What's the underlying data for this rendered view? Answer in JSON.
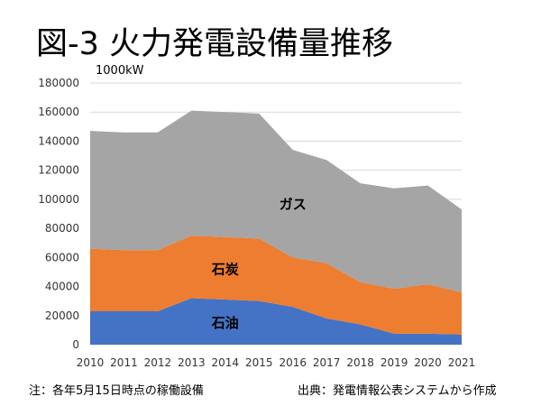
{
  "chart_data": {
    "type": "area",
    "stacked": true,
    "title": "図-3 火力発電設備量推移",
    "ylabel": "1000kW",
    "xlabel": "",
    "x": [
      2010,
      2011,
      2012,
      2013,
      2014,
      2015,
      2016,
      2017,
      2018,
      2019,
      2020,
      2021
    ],
    "ylim": [
      0,
      180000
    ],
    "yticks": [
      0,
      20000,
      40000,
      60000,
      80000,
      100000,
      120000,
      140000,
      160000,
      180000
    ],
    "grid": true,
    "series": [
      {
        "name": "石油",
        "color": "#4472C4",
        "values": [
          23000,
          23000,
          23000,
          32000,
          31000,
          30000,
          26000,
          18000,
          14000,
          7500,
          7500,
          7000
        ]
      },
      {
        "name": "石炭",
        "color": "#ED7D31",
        "values": [
          43000,
          42000,
          42000,
          43000,
          43000,
          43000,
          34000,
          38000,
          29000,
          31000,
          34000,
          29000
        ]
      },
      {
        "name": "ガス",
        "color": "#A5A5A5",
        "values": [
          81000,
          81000,
          81000,
          86000,
          86000,
          86000,
          74000,
          71000,
          68000,
          69000,
          68000,
          57000
        ]
      }
    ]
  },
  "unit_label": "1000kW",
  "note": "注：各年5月15日時点の稼働設備",
  "source": "出典：発電情報公表システムから作成"
}
